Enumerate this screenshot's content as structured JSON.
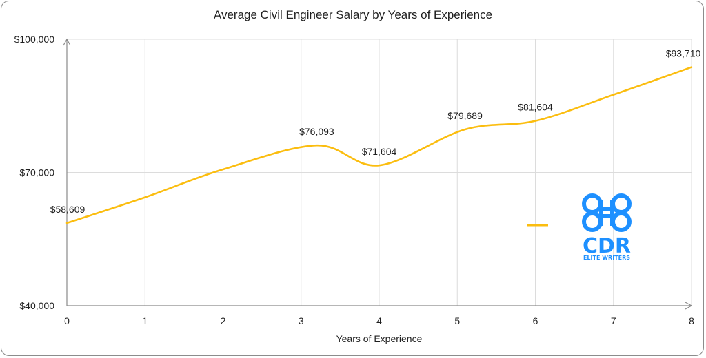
{
  "chart_data": {
    "type": "line",
    "title": "Average Civil Engineer Salary by Years of Experience",
    "xlabel": "Years of Experience",
    "ylabel": "",
    "x": [
      0,
      1,
      2,
      3,
      4,
      5,
      6,
      7,
      8
    ],
    "x_ticks": [
      "0",
      "1",
      "2",
      "3",
      "4",
      "5",
      "6",
      "7",
      "8"
    ],
    "y_ticks": [
      {
        "value": 40000,
        "label": "$40,000"
      },
      {
        "value": 70000,
        "label": "$70,000"
      },
      {
        "value": 100000,
        "label": "$100,000"
      }
    ],
    "ylim": [
      40000,
      100000
    ],
    "xlim": [
      0,
      8
    ],
    "grid": true,
    "smooth": true,
    "series": [
      {
        "color": "#fbbd0f",
        "points": [
          {
            "x": 0,
            "y": 58609,
            "label": "$58,609"
          },
          {
            "x": 1,
            "y": 64400
          },
          {
            "x": 2,
            "y": 70700
          },
          {
            "x": 3.2,
            "y": 76093,
            "label": "$76,093"
          },
          {
            "x": 4,
            "y": 71604,
            "label": "$71,604"
          },
          {
            "x": 5.1,
            "y": 79689,
            "label": "$79,689"
          },
          {
            "x": 6,
            "y": 81604,
            "label": "$81,604"
          },
          {
            "x": 7,
            "y": 87500
          },
          {
            "x": 8,
            "y": 93710,
            "label": "$93,710"
          }
        ]
      }
    ]
  },
  "logo": {
    "name": "CDR",
    "tagline": "ELITE WRITERS",
    "color": "#1e90ff"
  }
}
